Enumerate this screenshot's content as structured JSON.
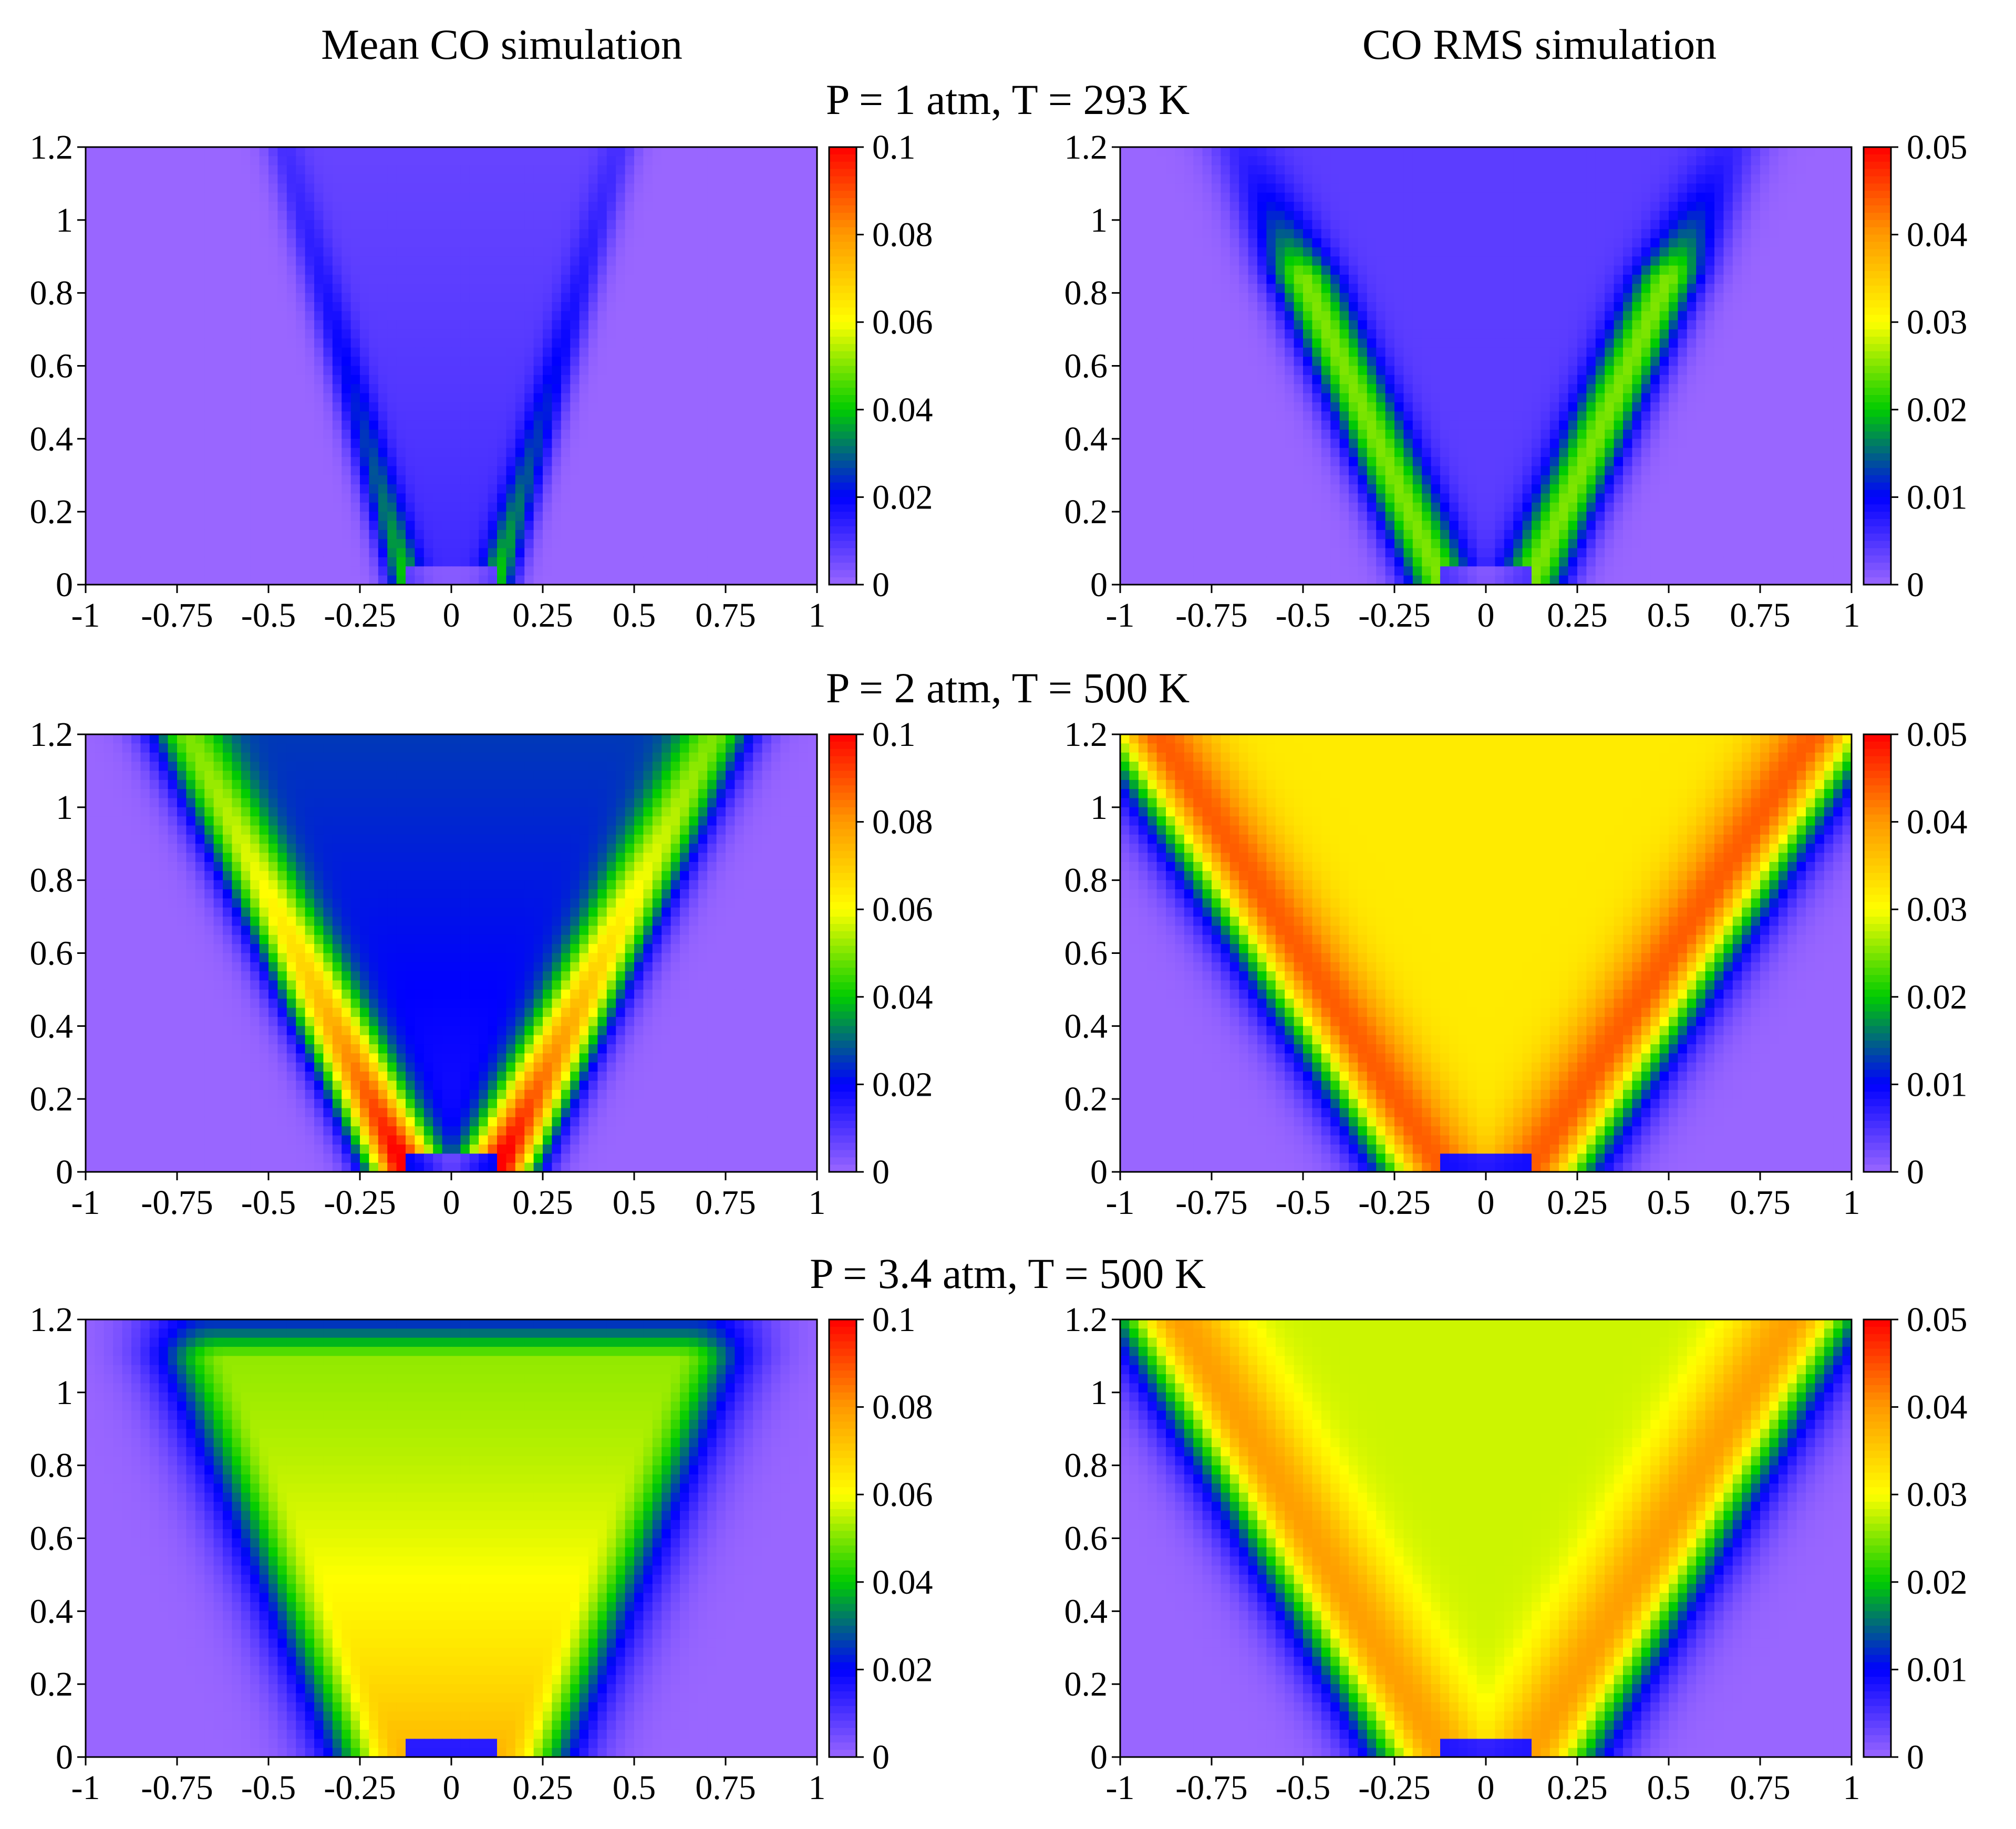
{
  "columns": {
    "left_title": "Mean CO simulation",
    "right_title": "CO RMS simulation"
  },
  "conditions": [
    "P = 1 atm, T = 293 K",
    "P = 2 atm, T = 500 K",
    "P = 3.4 atm, T = 500 K"
  ],
  "colormap": {
    "name": "rainbow",
    "stops": [
      "#9966ff",
      "#0000ff",
      "#00cc00",
      "#ffff00",
      "#ff9900",
      "#ff0000"
    ]
  },
  "chart_data": [
    {
      "type": "heatmap",
      "title": "Mean CO simulation",
      "condition": "P = 1 atm, T = 293 K",
      "x_ticks": [
        "-1",
        "-0.75",
        "-0.5",
        "-0.25",
        "0",
        "0.25",
        "0.5",
        "0.75",
        "1"
      ],
      "y_ticks": [
        "0",
        "0.2",
        "0.4",
        "0.6",
        "0.8",
        "1",
        "1.2"
      ],
      "xlim": [
        -1,
        1
      ],
      "ylim": [
        0,
        1.2
      ],
      "colorbar": {
        "range": [
          0,
          0.1
        ],
        "ticks": [
          "0",
          "0.02",
          "0.04",
          "0.06",
          "0.08",
          "0.1"
        ]
      },
      "field": {
        "pattern": "thin-v",
        "peak": 0.03,
        "core": 0.012,
        "band_width": 0.07,
        "spread": 0.28
      }
    },
    {
      "type": "heatmap",
      "title": "CO RMS simulation",
      "condition": "P = 1 atm, T = 293 K",
      "x_ticks": [
        "-1",
        "-0.75",
        "-0.5",
        "-0.25",
        "0",
        "0.25",
        "0.5",
        "0.75",
        "1"
      ],
      "y_ticks": [
        "0",
        "0.2",
        "0.4",
        "0.6",
        "0.8",
        "1",
        "1.2"
      ],
      "xlim": [
        -1,
        1
      ],
      "ylim": [
        0,
        1.2
      ],
      "colorbar": {
        "range": [
          0,
          0.05
        ],
        "ticks": [
          "0",
          "0.01",
          "0.02",
          "0.03",
          "0.04",
          "0.05"
        ]
      },
      "field": {
        "pattern": "v-bands",
        "peak": 0.021,
        "core": 0.004,
        "band_width": 0.13,
        "spread": 0.45
      }
    },
    {
      "type": "heatmap",
      "title": "Mean CO simulation",
      "condition": "P = 2 atm, T = 500 K",
      "x_ticks": [
        "-1",
        "-0.75",
        "-0.5",
        "-0.25",
        "0",
        "0.25",
        "0.5",
        "0.75",
        "1"
      ],
      "y_ticks": [
        "0",
        "0.2",
        "0.4",
        "0.6",
        "0.8",
        "1",
        "1.2"
      ],
      "xlim": [
        -1,
        1
      ],
      "ylim": [
        0,
        1.2
      ],
      "colorbar": {
        "range": [
          0,
          0.1
        ],
        "ticks": [
          "0",
          "0.02",
          "0.04",
          "0.06",
          "0.08",
          "0.1"
        ]
      },
      "field": {
        "pattern": "v-arms",
        "peak": 0.09,
        "core": 0.02,
        "band_width": 0.14,
        "spread": 0.5
      }
    },
    {
      "type": "heatmap",
      "title": "CO RMS simulation",
      "condition": "P = 2 atm, T = 500 K",
      "x_ticks": [
        "-1",
        "-0.75",
        "-0.5",
        "-0.25",
        "0",
        "0.25",
        "0.5",
        "0.75",
        "1"
      ],
      "y_ticks": [
        "0",
        "0.2",
        "0.4",
        "0.6",
        "0.8",
        "1",
        "1.2"
      ],
      "xlim": [
        -1,
        1
      ],
      "ylim": [
        0,
        1.2
      ],
      "colorbar": {
        "range": [
          0,
          0.05
        ],
        "ticks": [
          "0",
          "0.01",
          "0.02",
          "0.03",
          "0.04",
          "0.05"
        ]
      },
      "field": {
        "pattern": "wide-cone",
        "peak": 0.04,
        "core": 0.032,
        "band_width": 0.2,
        "spread": 0.65
      }
    },
    {
      "type": "heatmap",
      "title": "Mean CO simulation",
      "condition": "P = 3.4 atm, T = 500 K",
      "x_ticks": [
        "-1",
        "-0.75",
        "-0.5",
        "-0.25",
        "0",
        "0.25",
        "0.5",
        "0.75",
        "1"
      ],
      "y_ticks": [
        "0",
        "0.2",
        "0.4",
        "0.6",
        "0.8",
        "1",
        "1.2"
      ],
      "xlim": [
        -1,
        1
      ],
      "ylim": [
        0,
        1.2
      ],
      "colorbar": {
        "range": [
          0,
          0.1
        ],
        "ticks": [
          "0",
          "0.02",
          "0.04",
          "0.06",
          "0.08",
          "0.1"
        ]
      },
      "field": {
        "pattern": "cup",
        "peak": 0.075,
        "core": 0.045,
        "band_width": 0.22,
        "spread": 0.45
      }
    },
    {
      "type": "heatmap",
      "title": "CO RMS simulation",
      "condition": "P = 3.4 atm, T = 500 K",
      "x_ticks": [
        "-1",
        "-0.75",
        "-0.5",
        "-0.25",
        "0",
        "0.25",
        "0.5",
        "0.75",
        "1"
      ],
      "y_ticks": [
        "0",
        "0.2",
        "0.4",
        "0.6",
        "0.8",
        "1",
        "1.2"
      ],
      "xlim": [
        -1,
        1
      ],
      "ylim": [
        0,
        1.2
      ],
      "colorbar": {
        "range": [
          0,
          0.05
        ],
        "ticks": [
          "0",
          "0.01",
          "0.02",
          "0.03",
          "0.04",
          "0.05"
        ]
      },
      "field": {
        "pattern": "wide-cone",
        "peak": 0.038,
        "core": 0.028,
        "band_width": 0.22,
        "spread": 0.6
      }
    }
  ]
}
